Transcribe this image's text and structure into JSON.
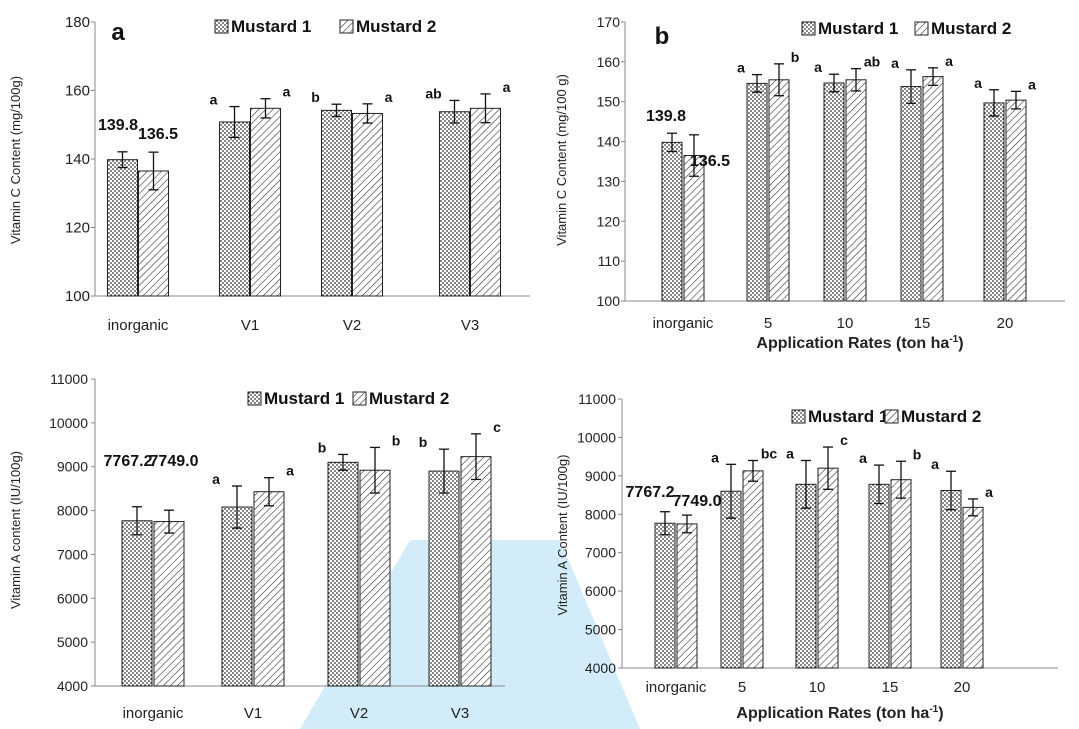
{
  "chart_data": [
    {
      "id": "a",
      "type": "bar",
      "panel_label": "a",
      "ylabel": "Vitamin C Content (mg/100g)",
      "xlabel": "",
      "ylim": [
        100,
        180
      ],
      "yticks": [
        100,
        120,
        140,
        160,
        180
      ],
      "categories": [
        "inorganic",
        "V1",
        "V2",
        "V3"
      ],
      "legend": [
        "Mustard 1",
        "Mustard 2"
      ],
      "series": [
        {
          "name": "Mustard 1",
          "values": [
            139.8,
            150.8,
            154.2,
            153.8
          ],
          "errors": [
            2.3,
            4.5,
            1.8,
            3.3
          ],
          "letters": [
            "",
            "a",
            "b",
            "ab"
          ]
        },
        {
          "name": "Mustard 2",
          "values": [
            136.5,
            154.8,
            153.3,
            154.8
          ],
          "errors": [
            5.5,
            2.8,
            2.8,
            4.2
          ],
          "letters": [
            "",
            "a",
            "a",
            "a"
          ]
        }
      ],
      "value_labels": [
        "139.8",
        "136.5"
      ]
    },
    {
      "id": "b",
      "type": "bar",
      "panel_label": "b",
      "ylabel": "Vitamin C Content (mg/100 g)",
      "xlabel": "Application Rates  (ton ha",
      "xlabel_sup": "-1",
      "xlabel_end": ")",
      "ylim": [
        100,
        170
      ],
      "yticks": [
        100,
        110,
        120,
        130,
        140,
        150,
        160,
        170
      ],
      "categories": [
        "inorganic",
        "5",
        "10",
        "15",
        "20"
      ],
      "legend": [
        "Mustard 1",
        "Mustard 2"
      ],
      "series": [
        {
          "name": "Mustard 1",
          "values": [
            139.8,
            154.6,
            154.7,
            153.8,
            149.7
          ],
          "errors": [
            2.3,
            2.2,
            2.2,
            4.2,
            3.3
          ],
          "letters": [
            "",
            "a",
            "a",
            "a",
            "a"
          ]
        },
        {
          "name": "Mustard 2",
          "values": [
            136.5,
            155.5,
            155.5,
            156.3,
            150.4
          ],
          "errors": [
            5.2,
            4.0,
            2.8,
            2.2,
            2.2
          ],
          "letters": [
            "",
            "b",
            "ab",
            "a",
            "a"
          ]
        }
      ],
      "value_labels": [
        "139.8",
        "136.5"
      ]
    },
    {
      "id": "c",
      "type": "bar",
      "ylabel": "Vitamin A content (IU/100g)",
      "xlabel": "",
      "ylim": [
        4000,
        11000
      ],
      "yticks": [
        4000,
        5000,
        6000,
        7000,
        8000,
        9000,
        10000,
        11000
      ],
      "categories": [
        "inorganic",
        "V1",
        "V2",
        "V3"
      ],
      "legend": [
        "Mustard 1",
        "Mustard 2"
      ],
      "series": [
        {
          "name": "Mustard 1",
          "values": [
            7767.2,
            8080,
            9100,
            8900
          ],
          "errors": [
            320,
            480,
            180,
            500
          ],
          "letters": [
            "",
            "a",
            "b",
            "b"
          ]
        },
        {
          "name": "Mustard 2",
          "values": [
            7749.0,
            8430,
            8920,
            9230
          ],
          "errors": [
            260,
            320,
            520,
            520
          ],
          "letters": [
            "",
            "a",
            "b",
            "c"
          ]
        }
      ],
      "value_labels": [
        "7767.2",
        "7749.0"
      ]
    },
    {
      "id": "d",
      "type": "bar",
      "ylabel": "Vitamin A Content (IU/100g)",
      "xlabel": "Application Rates  (ton ha",
      "xlabel_sup": "-1",
      "xlabel_end": ")",
      "ylim": [
        4000,
        11000
      ],
      "yticks": [
        4000,
        5000,
        6000,
        7000,
        8000,
        9000,
        10000,
        11000
      ],
      "categories": [
        "inorganic",
        "5",
        "10",
        "15",
        "20"
      ],
      "legend": [
        "Mustard 1",
        "Mustard 2"
      ],
      "series": [
        {
          "name": "Mustard 1",
          "values": [
            7767.2,
            8600,
            8780,
            8780,
            8620
          ],
          "errors": [
            300,
            700,
            620,
            500,
            500
          ],
          "letters": [
            "",
            "a",
            "a",
            "a",
            "a"
          ]
        },
        {
          "name": "Mustard 2",
          "values": [
            7749.0,
            9130,
            9200,
            8900,
            8180
          ],
          "errors": [
            230,
            270,
            550,
            480,
            220
          ],
          "letters": [
            "",
            "bc",
            "c",
            "b",
            "a"
          ]
        }
      ],
      "value_labels": [
        "7767.2",
        "7749.0"
      ]
    }
  ],
  "watermark_color": "#9fd8f2"
}
